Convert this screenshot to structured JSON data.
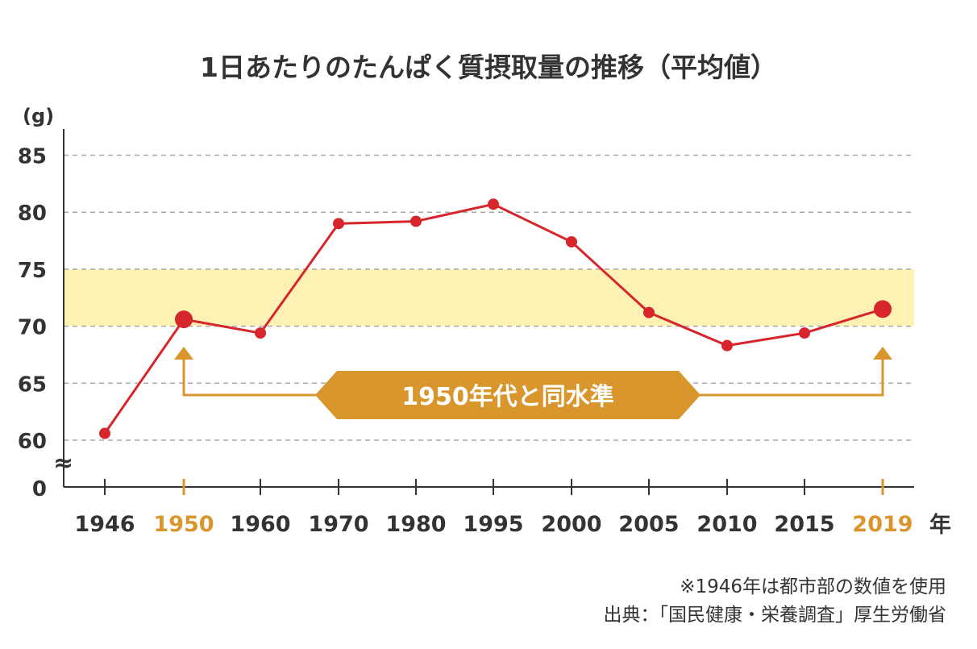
{
  "chart_data": {
    "type": "line",
    "title": "1日あたりのたんぱく質摂取量の推移（平均値）",
    "y_unit": "(g)",
    "x_unit": "年",
    "axis_break_symbol": "≈",
    "y_zero_label": "0",
    "yticks": [
      60,
      65,
      70,
      75,
      80,
      85
    ],
    "ylim": [
      58,
      86
    ],
    "grid": "horizontal-dashed",
    "categories": [
      "1946",
      "1950",
      "1960",
      "1970",
      "1980",
      "1995",
      "2000",
      "2005",
      "2010",
      "2015",
      "2019"
    ],
    "highlight_categories": [
      "1950",
      "2019"
    ],
    "values": [
      60.6,
      70.6,
      69.4,
      79.0,
      79.2,
      80.7,
      77.4,
      71.2,
      68.3,
      69.4,
      71.5
    ],
    "band": {
      "from": 70,
      "to": 75
    },
    "annotation": {
      "label": "1950年代と同水準",
      "from": "1950",
      "to": "2019"
    }
  },
  "notes": {
    "line1": "※1946年は都市部の数値を使用",
    "line2": "出典：「国民健康・栄養調査」厚生労働省"
  },
  "colors": {
    "line": "#d6262c",
    "band": "#fdf2b3",
    "highlight": "#d9962c",
    "annotation": "#d9962c",
    "grid": "#a8a8a8",
    "axis": "#333333",
    "text": "#333333"
  }
}
